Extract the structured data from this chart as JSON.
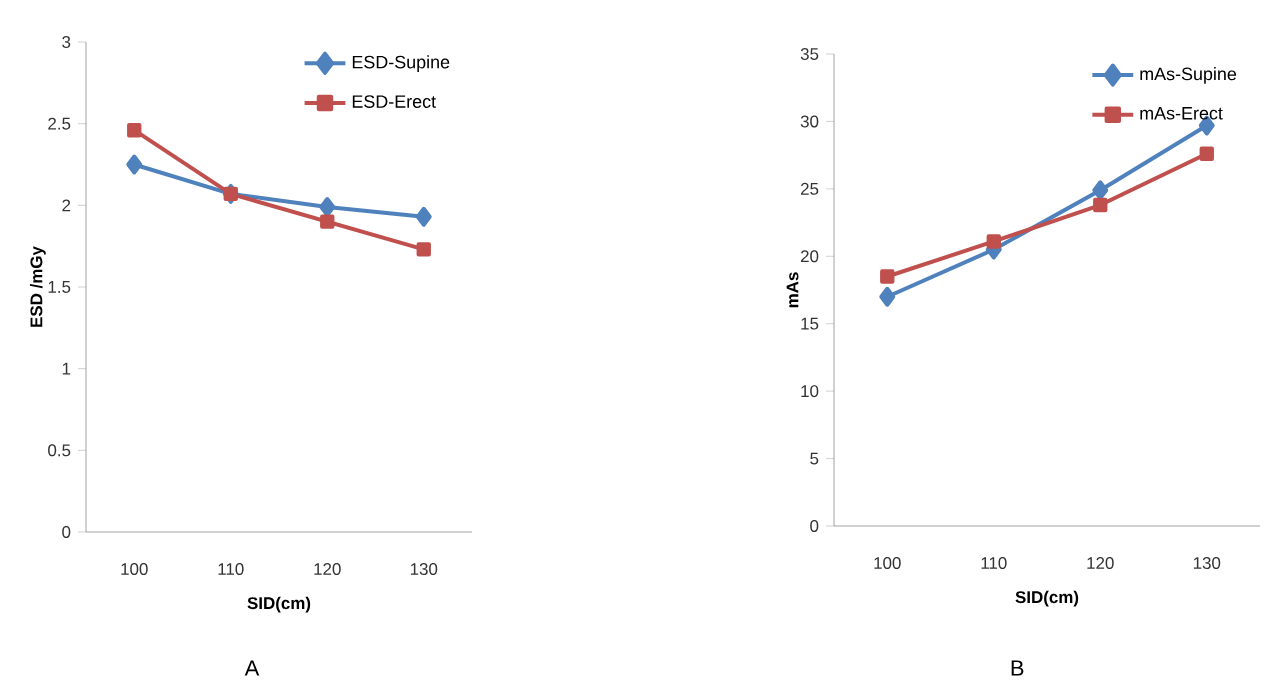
{
  "chart_data": [
    {
      "type": "line",
      "categories": [
        "100",
        "110",
        "120",
        "130"
      ],
      "xlabel": "SID(cm)",
      "ylabel": "ESD /mGy",
      "ylim": [
        0,
        3
      ],
      "yticks": [
        0,
        0.5,
        1,
        1.5,
        2,
        2.5,
        3
      ],
      "legend": "top right",
      "grid": false,
      "annotations": [
        "A"
      ],
      "series": [
        {
          "name": "ESD-Supine",
          "color": "#4f81bd",
          "marker": "diamond",
          "values": [
            2.25,
            2.07,
            1.99,
            1.93
          ]
        },
        {
          "name": "ESD-Erect",
          "color": "#c0504d",
          "marker": "square",
          "values": [
            2.46,
            2.07,
            1.9,
            1.73
          ]
        }
      ]
    },
    {
      "type": "line",
      "categories": [
        "100",
        "110",
        "120",
        "130"
      ],
      "xlabel": "SID(cm)",
      "ylabel": "mAs",
      "ylim": [
        0,
        35
      ],
      "yticks": [
        0,
        5,
        10,
        15,
        20,
        25,
        30,
        35
      ],
      "legend": "top right",
      "grid": false,
      "annotations": [
        "B"
      ],
      "series": [
        {
          "name": "mAs-Supine",
          "color": "#4f81bd",
          "marker": "diamond",
          "values": [
            17.0,
            20.5,
            24.9,
            29.7
          ]
        },
        {
          "name": "mAs-Erect",
          "color": "#c0504d",
          "marker": "square",
          "values": [
            18.5,
            21.1,
            23.8,
            27.6
          ]
        }
      ]
    }
  ]
}
